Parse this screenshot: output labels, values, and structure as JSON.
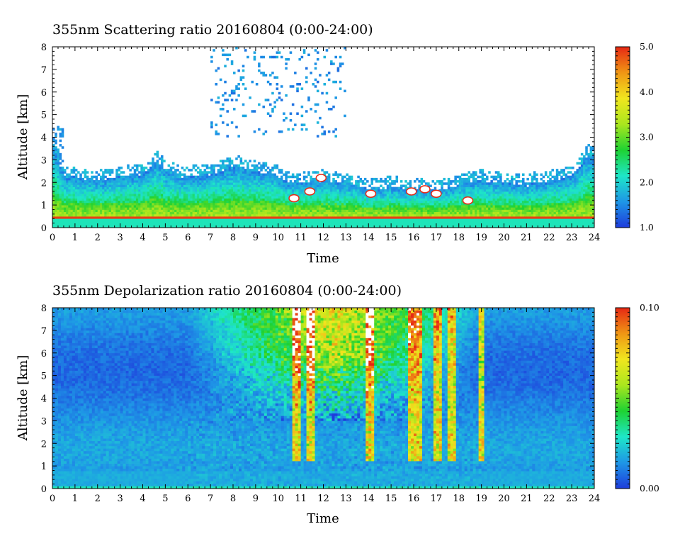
{
  "chart_data": [
    {
      "type": "heatmap",
      "title": "355nm Scattering ratio  20160804 (0:00-24:00)",
      "xlabel": "Time",
      "ylabel": "Altitude [km]",
      "xlim": [
        0,
        24
      ],
      "ylim": [
        0,
        8
      ],
      "x_ticks": [
        "0",
        "1",
        "2",
        "3",
        "4",
        "5",
        "6",
        "7",
        "8",
        "9",
        "10",
        "11",
        "12",
        "13",
        "14",
        "15",
        "16",
        "17",
        "18",
        "19",
        "20",
        "21",
        "22",
        "23",
        "24"
      ],
      "y_ticks": [
        "0",
        "1",
        "2",
        "3",
        "4",
        "5",
        "6",
        "7",
        "8"
      ],
      "colorbar": {
        "range": [
          1.0,
          5.0
        ],
        "tick_values": [
          1.0,
          2.0,
          3.0,
          4.0,
          5.0
        ],
        "tick_labels": [
          "1.0",
          "2.0",
          "3.0",
          "4.0",
          "5.0"
        ],
        "colors": [
          "#1e3cdc",
          "#1e96e6",
          "#1ee6c8",
          "#1ed232",
          "#aae61e",
          "#f0e61e",
          "#f09614",
          "#e62814"
        ]
      },
      "background_color": "#ffffff",
      "features": {
        "boundary_layer_top_km": [
          [
            0,
            3.6
          ],
          [
            0.5,
            2.3
          ],
          [
            2,
            2.1
          ],
          [
            4,
            2.4
          ],
          [
            4.6,
            3.0
          ],
          [
            5,
            2.5
          ],
          [
            6,
            2.2
          ],
          [
            7,
            2.4
          ],
          [
            8,
            2.7
          ],
          [
            9,
            2.5
          ],
          [
            10,
            2.3
          ],
          [
            10.5,
            2.0
          ],
          [
            12,
            2.1
          ],
          [
            13,
            2.0
          ],
          [
            14,
            1.7
          ],
          [
            15,
            1.8
          ],
          [
            16,
            1.7
          ],
          [
            17,
            1.6
          ],
          [
            18,
            1.9
          ],
          [
            19,
            2.1
          ],
          [
            20,
            2.0
          ],
          [
            21,
            1.9
          ],
          [
            22,
            2.1
          ],
          [
            23,
            2.3
          ],
          [
            23.8,
            3.2
          ],
          [
            24,
            3.2
          ]
        ],
        "surface_layer_km": [
          0.4,
          0.5
        ],
        "cloud_patches": [
          {
            "t": 10.7,
            "z": 1.3
          },
          {
            "t": 11.4,
            "z": 1.6
          },
          {
            "t": 11.9,
            "z": 2.2
          },
          {
            "t": 14.1,
            "z": 1.5
          },
          {
            "t": 15.9,
            "z": 1.6
          },
          {
            "t": 16.5,
            "z": 1.7
          },
          {
            "t": 17.0,
            "z": 1.5
          },
          {
            "t": 18.4,
            "z": 1.2
          }
        ],
        "aerosol_plumes_hours": [
          [
            7,
            13
          ]
        ]
      }
    },
    {
      "type": "heatmap",
      "title": "355nm Depolarization ratio  20160804 (0:00-24:00)",
      "xlabel": "Time",
      "ylabel": "Altitude [km]",
      "xlim": [
        0,
        24
      ],
      "ylim": [
        0,
        8
      ],
      "x_ticks": [
        "0",
        "1",
        "2",
        "3",
        "4",
        "5",
        "6",
        "7",
        "8",
        "9",
        "10",
        "11",
        "12",
        "13",
        "14",
        "15",
        "16",
        "17",
        "18",
        "19",
        "20",
        "21",
        "22",
        "23",
        "24"
      ],
      "y_ticks": [
        "0",
        "1",
        "2",
        "3",
        "4",
        "5",
        "6",
        "7",
        "8"
      ],
      "colorbar": {
        "range": [
          0.0,
          0.1
        ],
        "tick_values": [
          0.0,
          0.1
        ],
        "tick_labels": [
          "0.00",
          "0.10"
        ],
        "colors": [
          "#1e3cdc",
          "#1e96e6",
          "#1ee6c8",
          "#1ed232",
          "#aae61e",
          "#f0e61e",
          "#f09614",
          "#e62814"
        ]
      },
      "features": {
        "surface_layer_km": [
          0,
          0.15
        ],
        "high_depol_region_hours": [
          6,
          19
        ],
        "high_depol_columns_hours": [
          10.8,
          11.4,
          14.1,
          15.9,
          16.2,
          17.1,
          17.7,
          19.0
        ]
      }
    }
  ]
}
